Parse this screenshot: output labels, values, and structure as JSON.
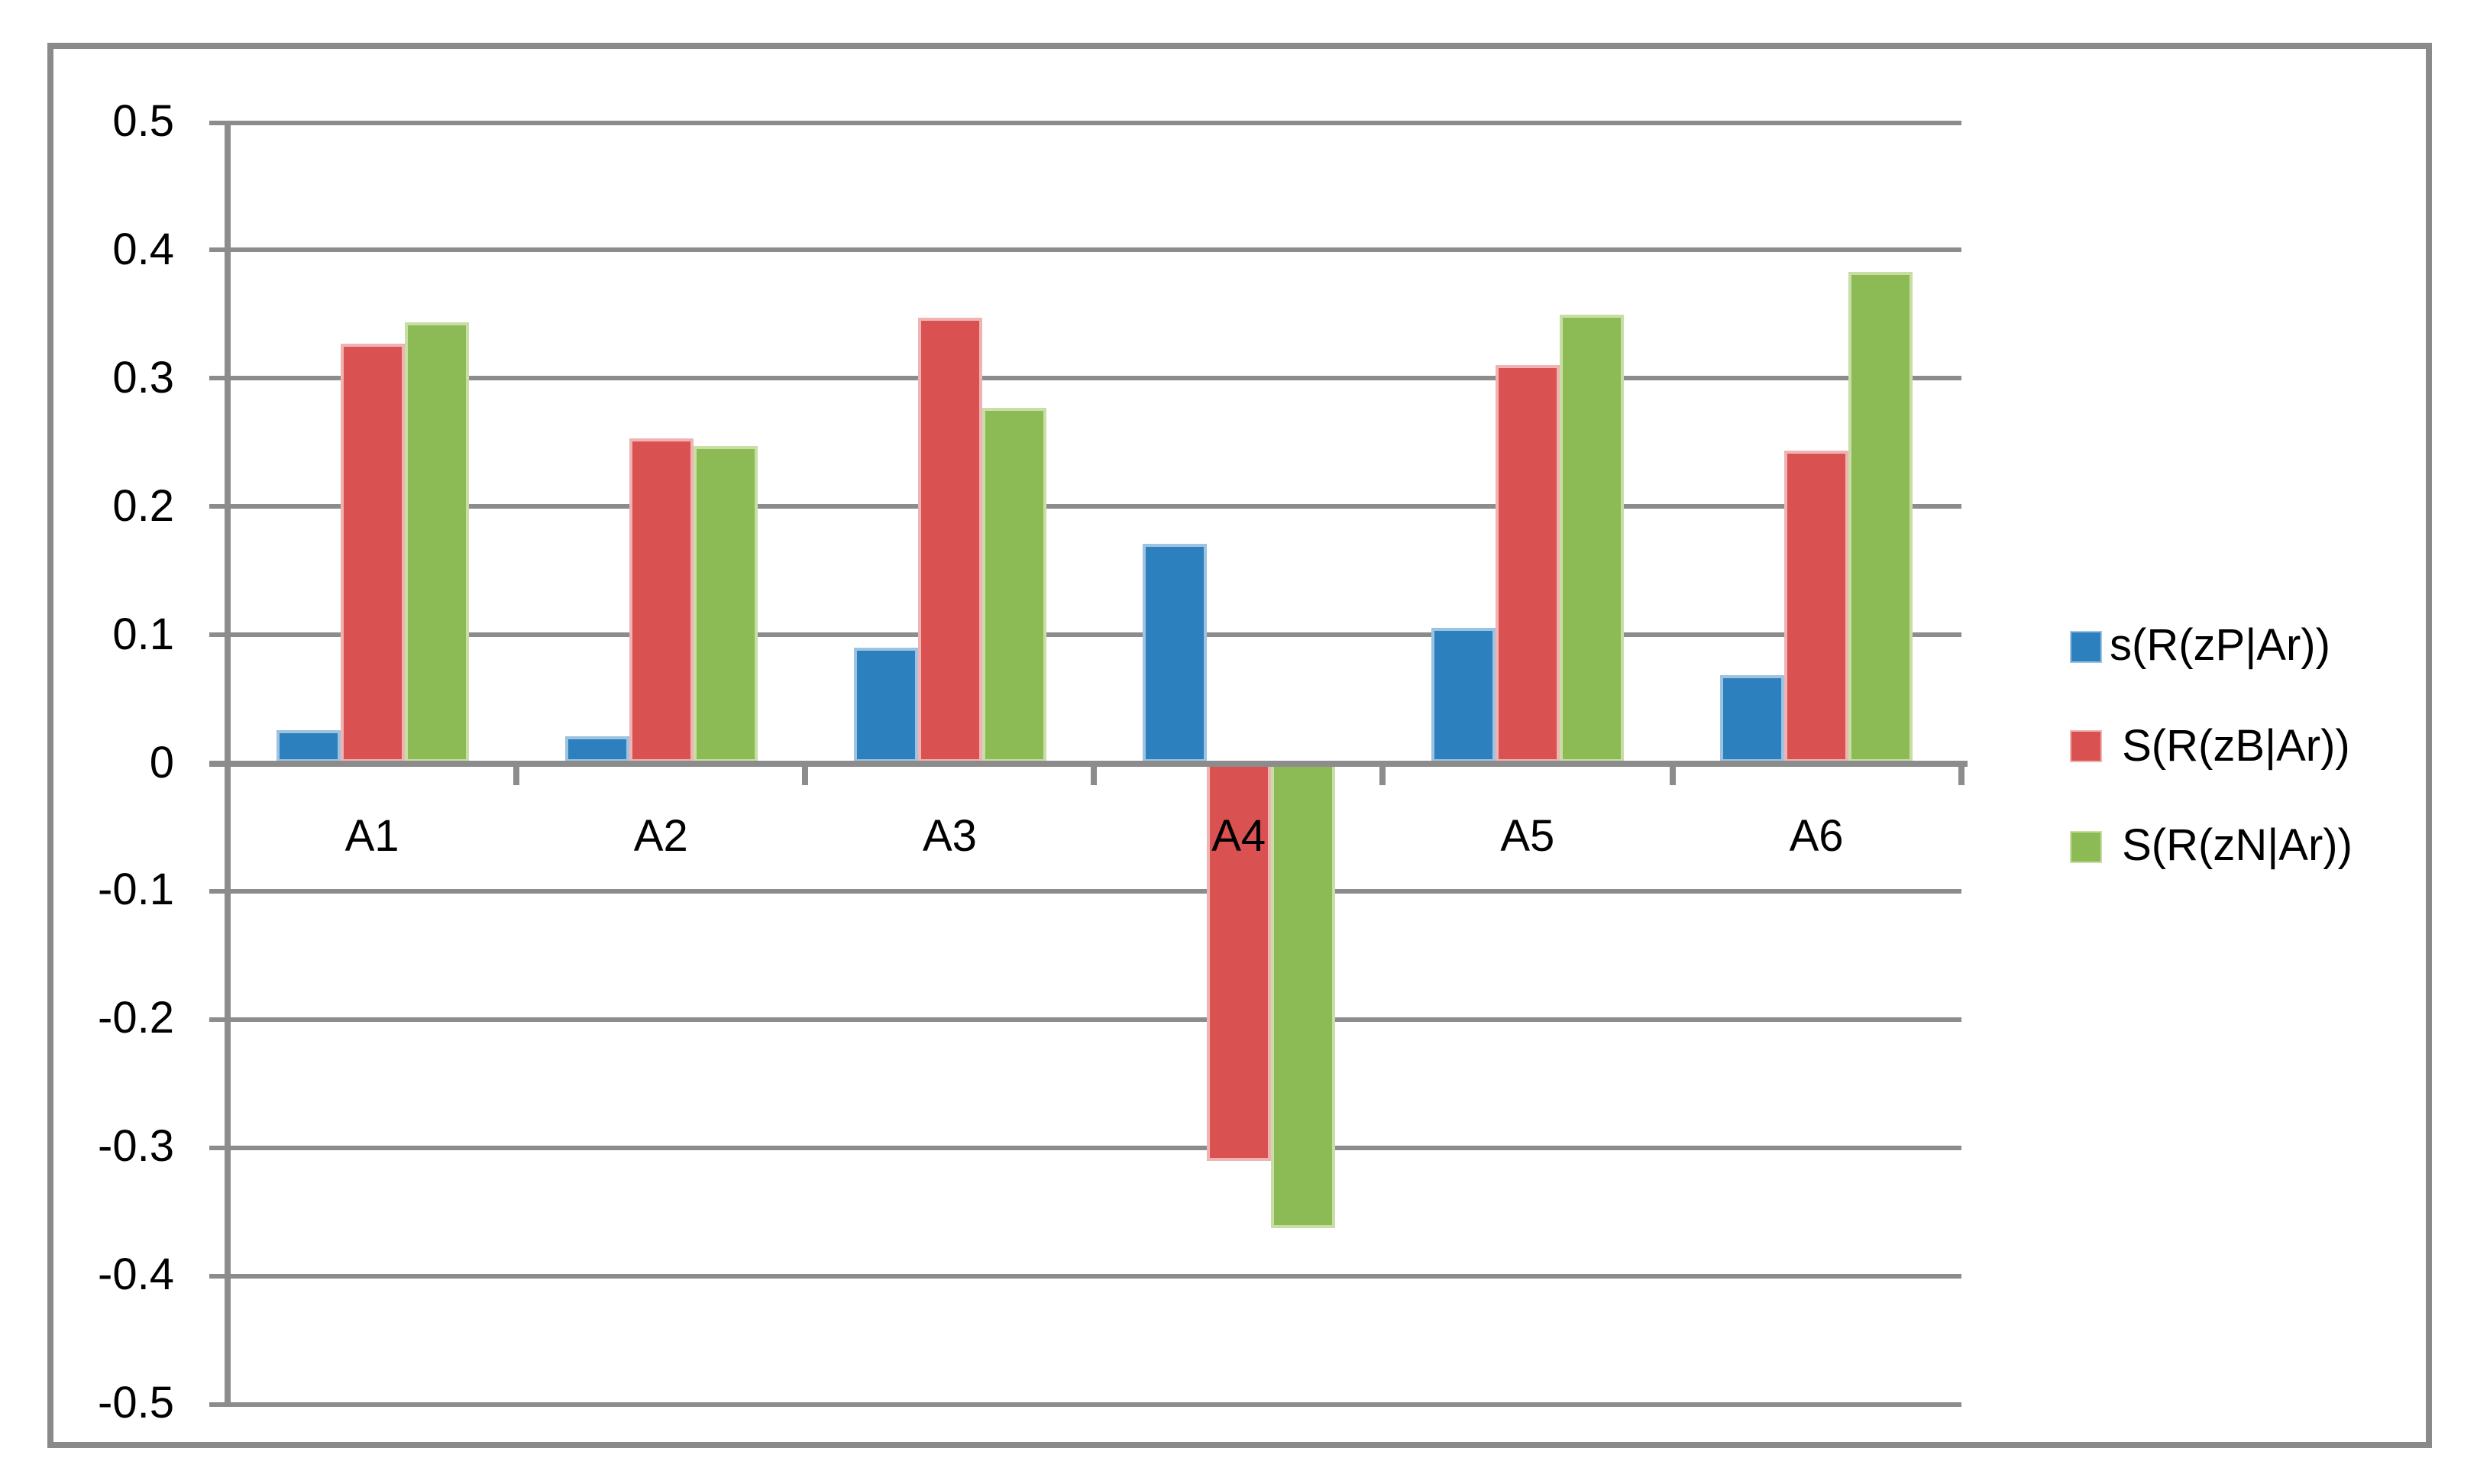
{
  "window": {
    "background": "#FFFFFF",
    "frame_color": "#8A8A8A"
  },
  "chart_data": {
    "type": "bar",
    "title": "",
    "xlabel": "",
    "ylabel": "",
    "categories": [
      "A1",
      "A2",
      "A3",
      "A4",
      "A5",
      "A6"
    ],
    "series": [
      {
        "name": "s(R(zP|Ar))",
        "color": "#2C80BD",
        "border_color": "#9DC3E0",
        "values": [
          0.026,
          0.021,
          0.09,
          0.171,
          0.105,
          0.068
        ]
      },
      {
        "name": " S(R(zB|Ar))",
        "color": "#D95151",
        "border_color": "#EFB3B3",
        "values": [
          0.327,
          0.253,
          0.348,
          -0.31,
          0.311,
          0.244
        ]
      },
      {
        "name": " S(R(zN|Ar))",
        "color": "#8CBB55",
        "border_color": "#C9DEA5",
        "values": [
          0.344,
          0.247,
          0.277,
          -0.363,
          0.35,
          0.383
        ]
      }
    ],
    "ylim": [
      -0.5,
      0.5
    ],
    "ytick_step": 0.1,
    "ytick_labels": [
      "0.5",
      "0.4",
      "0.3",
      "0.2",
      "0.1",
      "0",
      "-0.1",
      "-0.2",
      "-0.3",
      "-0.4",
      "-0.5"
    ],
    "grid": true,
    "gridline_color": "#8C8C8C",
    "axis_color": "#8C8C8C",
    "text_color": "#000000",
    "legend_position": "right"
  }
}
